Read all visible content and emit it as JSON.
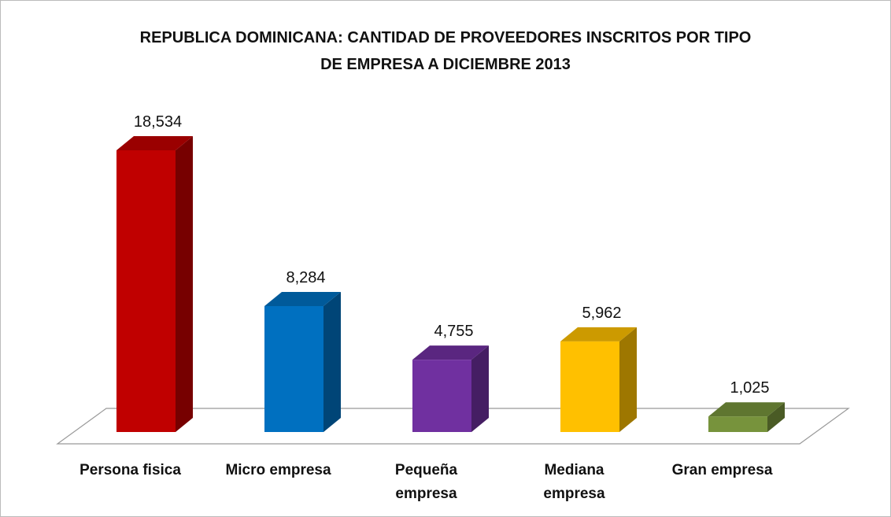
{
  "chart_data": {
    "type": "bar3d",
    "title": "REPUBLICA DOMINICANA: CANTIDAD DE PROVEEDORES INSCRITOS POR TIPO\nDE EMPRESA A DICIEMBRE 2013",
    "categories": [
      "Persona fisica",
      "Micro empresa",
      "Pequeña\nempresa",
      "Mediana\nempresa",
      "Gran empresa"
    ],
    "values": [
      18534,
      8284,
      4755,
      5962,
      1025
    ],
    "value_labels": [
      "18,534",
      "8,284",
      "4,755",
      "5,962",
      "1,025"
    ],
    "colors": [
      "#c00000",
      "#0070c0",
      "#7030a0",
      "#ffc000",
      "#77933c"
    ]
  }
}
